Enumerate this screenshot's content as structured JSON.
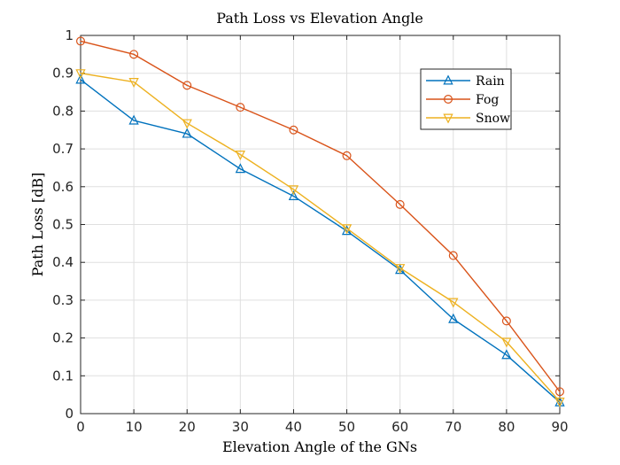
{
  "chart_data": {
    "type": "line",
    "title": "Path Loss vs Elevation Angle",
    "xlabel": "Elevation Angle of the GNs",
    "ylabel": "Path Loss [dB]",
    "x": [
      0,
      10,
      20,
      30,
      40,
      50,
      60,
      70,
      80,
      90
    ],
    "xlim": [
      0,
      90
    ],
    "ylim": [
      0,
      1
    ],
    "xticks": [
      0,
      10,
      20,
      30,
      40,
      50,
      60,
      70,
      80,
      90
    ],
    "yticks": [
      0,
      0.1,
      0.2,
      0.3,
      0.4,
      0.5,
      0.6,
      0.7,
      0.8,
      0.9,
      1
    ],
    "xtick_labels": [
      "0",
      "10",
      "20",
      "30",
      "40",
      "50",
      "60",
      "70",
      "80",
      "90"
    ],
    "ytick_labels": [
      "0",
      "0.1",
      "0.2",
      "0.3",
      "0.4",
      "0.5",
      "0.6",
      "0.7",
      "0.8",
      "0.9",
      "1"
    ],
    "grid": true,
    "legend_position": "top-right",
    "series": [
      {
        "name": "Rain",
        "color": "#0072BD",
        "marker": "triangle-up",
        "values": [
          0.883,
          0.775,
          0.74,
          0.647,
          0.575,
          0.483,
          0.38,
          0.25,
          0.155,
          0.03
        ]
      },
      {
        "name": "Fog",
        "color": "#D95319",
        "marker": "circle",
        "values": [
          0.985,
          0.95,
          0.868,
          0.81,
          0.75,
          0.682,
          0.553,
          0.418,
          0.245,
          0.058
        ]
      },
      {
        "name": "Snow",
        "color": "#EDB120",
        "marker": "triangle-down",
        "values": [
          0.9,
          0.877,
          0.768,
          0.685,
          0.593,
          0.49,
          0.385,
          0.295,
          0.19,
          0.032
        ]
      }
    ]
  }
}
